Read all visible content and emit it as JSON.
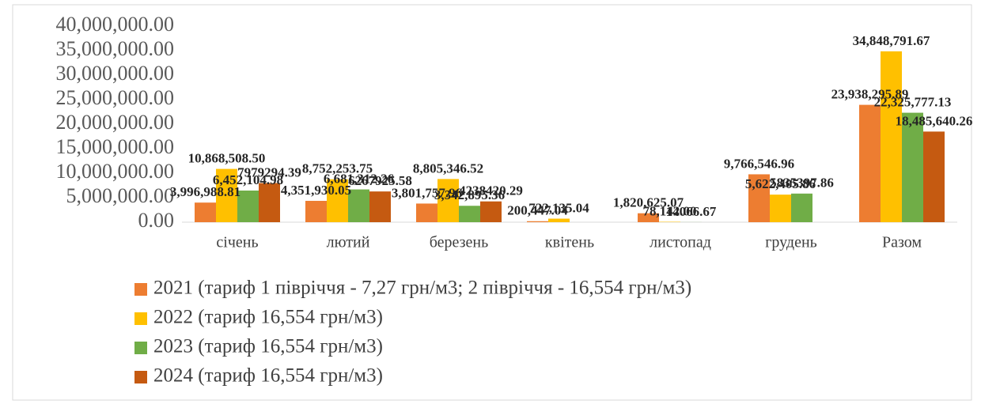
{
  "chart_data": {
    "type": "bar",
    "categories": [
      "січень",
      "лютий",
      "березень",
      "квітень",
      "листопад",
      "грудень",
      "Разом"
    ],
    "series": [
      {
        "name": "2021 (тариф 1 півріччя - 7,27 грн/м3; 2 півріччя - 16,554 грн/м3)",
        "color": "#ed7d31",
        "values": [
          3996988.81,
          4351930.05,
          3801757.96,
          200447.04,
          1820625.07,
          9766546.96,
          23938295.89
        ],
        "value_labels": [
          "3,996,988.81",
          "4,351,930.05",
          "3,801,757.96",
          "200,447.04",
          "1,820,625.07",
          "9,766,546.96",
          "23,938,295.89"
        ]
      },
      {
        "name": "2022 (тариф 16,554 грн/м3)",
        "color": "#ffc000",
        "values": [
          10868508.5,
          8752253.75,
          8805346.52,
          722135.04,
          78142.0,
          5622405.86,
          34848791.67
        ],
        "value_labels": [
          "10,868,508.50",
          "8,752,253.75",
          "8,805,346.52",
          "722,135.04",
          "78,142.00",
          "5,622,405.86",
          "34,848,791.67"
        ]
      },
      {
        "name": "2023 (тариф 16,554 грн/м3)",
        "color": "#70ad47",
        "values": [
          6452104.98,
          6681312.26,
          3342895.36,
          null,
          14066.67,
          5835397.86,
          22325777.13
        ],
        "value_labels": [
          "6,452,104.98",
          "6,681,312.26",
          "3,342,895.36",
          null,
          "14066.67",
          "5835397.86",
          "22,325,777.13"
        ]
      },
      {
        "name": "2024 (тариф 16,554 грн/м3)",
        "color": "#c55a11",
        "values": [
          7979294.39,
          6267925.58,
          4238420.29,
          null,
          null,
          null,
          18485640.26
        ],
        "value_labels": [
          "7979294.39",
          "6267925.58",
          "4238420.29",
          null,
          null,
          null,
          "18,485,640.26"
        ]
      }
    ],
    "ylim": [
      0,
      40000000
    ],
    "yticks": [
      {
        "value": 0,
        "label": "0.00"
      },
      {
        "value": 5000000,
        "label": "5,000,000.00"
      },
      {
        "value": 10000000,
        "label": "10,000,000.00"
      },
      {
        "value": 15000000,
        "label": "15,000,000.00"
      },
      {
        "value": 20000000,
        "label": "20,000,000.00"
      },
      {
        "value": 25000000,
        "label": "25,000,000.00"
      },
      {
        "value": 30000000,
        "label": "30,000,000.00"
      },
      {
        "value": 35000000,
        "label": "35,000,000.00"
      },
      {
        "value": 40000000,
        "label": "40,000,000.00"
      }
    ],
    "grid": false,
    "legend": "bottom"
  }
}
